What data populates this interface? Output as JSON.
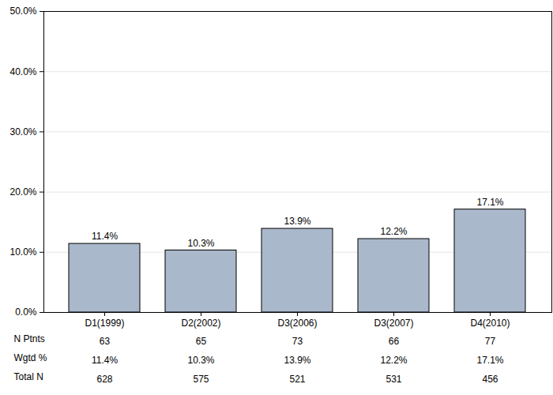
{
  "chart_data": {
    "type": "bar",
    "categories": [
      "D1(1999)",
      "D2(2002)",
      "D3(2006)",
      "D3(2007)",
      "D4(2010)"
    ],
    "values": [
      11.4,
      10.3,
      13.9,
      12.2,
      17.1
    ],
    "value_labels": [
      "11.4%",
      "10.3%",
      "13.9%",
      "12.2%",
      "17.1%"
    ],
    "data_labels": true,
    "color": "#a9b8cb",
    "ylim": [
      0,
      50
    ],
    "yticks": [
      {
        "value": 0,
        "label": "0.0%"
      },
      {
        "value": 10,
        "label": "10.0%"
      },
      {
        "value": 20,
        "label": "20.0%"
      },
      {
        "value": 30,
        "label": "30.0%"
      },
      {
        "value": 40,
        "label": "40.0%"
      },
      {
        "value": 50,
        "label": "50.0%"
      }
    ],
    "grid": true,
    "table": [
      {
        "label": "N Ptnts",
        "values": [
          63,
          65,
          73,
          66,
          77
        ]
      },
      {
        "label": "Wgtd %",
        "values": [
          11.4,
          10.3,
          13.9,
          12.2,
          17.1
        ],
        "value_labels": [
          "11.4%",
          "10.3%",
          "13.9%",
          "12.2%",
          "17.1%"
        ]
      },
      {
        "label": "Total N",
        "values": [
          628,
          575,
          521,
          531,
          456
        ]
      }
    ]
  }
}
